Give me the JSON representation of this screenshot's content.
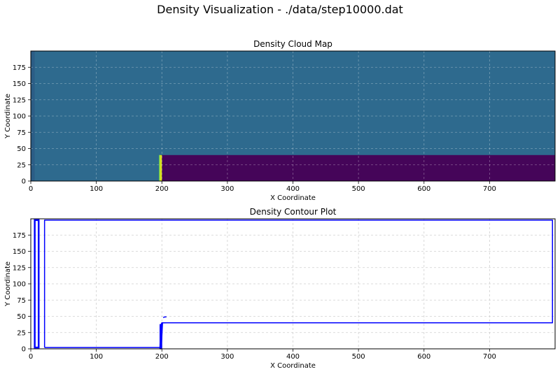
{
  "figure": {
    "suptitle": "Density Visualization - ./data/step10000.dat"
  },
  "chart_data": [
    {
      "type": "heatmap",
      "title": "Density Cloud Map",
      "xlabel": "X Coordinate",
      "ylabel": "Y Coordinate",
      "xlim": [
        0,
        800
      ],
      "ylim": [
        0,
        200
      ],
      "xticks": [
        0,
        100,
        200,
        300,
        400,
        500,
        600,
        700
      ],
      "yticks": [
        0,
        25,
        50,
        75,
        100,
        125,
        150,
        175
      ],
      "grid": true,
      "colormap": "viridis",
      "colors": {
        "background_fluid": "#2e6a8e",
        "left_strip": "#2b5d86",
        "dense_block": "#450559",
        "interface_bright": "#dfe318",
        "interface_green": "#6cce59"
      },
      "regions": [
        {
          "name": "fluid",
          "x": [
            0,
            800
          ],
          "y": [
            0,
            200
          ],
          "color": "#2e6a8e"
        },
        {
          "name": "left-strip",
          "x": [
            0,
            6
          ],
          "y": [
            0,
            200
          ],
          "color": "#2b5d86"
        },
        {
          "name": "dense-block",
          "x": [
            200,
            800
          ],
          "y": [
            0,
            40
          ],
          "color": "#450559"
        },
        {
          "name": "interface",
          "x": [
            196,
            200
          ],
          "y": [
            0,
            40
          ],
          "color": "#dfe318"
        }
      ]
    },
    {
      "type": "line",
      "title": "Density Contour Plot",
      "xlabel": "X Coordinate",
      "ylabel": "Y Coordinate",
      "xlim": [
        0,
        800
      ],
      "ylim": [
        0,
        200
      ],
      "xticks": [
        0,
        100,
        200,
        300,
        400,
        500,
        600,
        700
      ],
      "yticks": [
        0,
        25,
        50,
        75,
        100,
        125,
        150,
        175
      ],
      "grid": true,
      "line_color": "#0000ff",
      "contours": [
        {
          "name": "left-band",
          "x": [
            6,
            6,
            12,
            12,
            6
          ],
          "y": [
            2,
            198,
            198,
            2,
            2
          ]
        },
        {
          "name": "main-loop",
          "x": [
            21,
            21,
            796,
            796,
            200,
            199,
            198,
            21
          ],
          "y": [
            2,
            198,
            198,
            40,
            40,
            38,
            2,
            2
          ]
        },
        {
          "name": "interface-front",
          "x": [
            197,
            199,
            200,
            201,
            200,
            198,
            197
          ],
          "y": [
            0,
            0,
            20,
            40,
            40,
            30,
            0
          ]
        },
        {
          "name": "interface-top",
          "x": [
            200,
            203,
            206
          ],
          "y": [
            40,
            40,
            40
          ]
        },
        {
          "name": "droplet",
          "x": [
            202,
            204,
            207
          ],
          "y": [
            48,
            49,
            49
          ]
        }
      ]
    }
  ]
}
